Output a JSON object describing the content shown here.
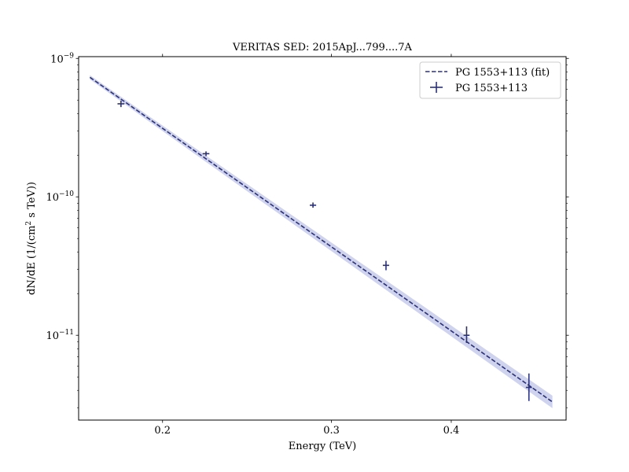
{
  "chart_data": {
    "type": "scatter",
    "title": "VERITAS SED: 2015ApJ...799....7A",
    "xlabel": "Energy (TeV)",
    "ylabel_main": "dN/dE (1/(cm",
    "ylabel_sup": "2",
    "ylabel_tail": " s TeV))",
    "x_scale": "log",
    "y_scale": "log",
    "xlim": [
      0.1635,
      0.527
    ],
    "ylim": [
      2.44e-12,
      1.03e-09
    ],
    "x_ticks": [
      {
        "value": 0.2,
        "label": "0.2"
      },
      {
        "value": 0.3,
        "label": "0.3"
      },
      {
        "value": 0.4,
        "label": "0.4"
      }
    ],
    "y_ticks": [
      {
        "value": 1e-09,
        "base": "10",
        "exp": "−9"
      },
      {
        "value": 1e-10,
        "base": "10",
        "exp": "−10"
      },
      {
        "value": 1e-11,
        "base": "10",
        "exp": "−11"
      }
    ],
    "colors": {
      "series": "#2b3175",
      "band": "#c7cbea"
    },
    "legend": {
      "placement": "top-right"
    },
    "series": [
      {
        "name": "PG 1553+113 (fit)",
        "kind": "line",
        "x_range": [
          0.168,
          0.51
        ],
        "y_at_range": [
          7.3e-10,
          3.3e-12
        ]
      },
      {
        "name": "PG 1553+113",
        "kind": "errorbar",
        "points": [
          {
            "x": 0.181,
            "y": 4.7e-10,
            "ylo": 4.45e-10,
            "yhi": 4.95e-10,
            "xerr": 0.0015
          },
          {
            "x": 0.222,
            "y": 2.05e-10,
            "ylo": 1.97e-10,
            "yhi": 2.13e-10,
            "xerr": 0.0018
          },
          {
            "x": 0.287,
            "y": 8.7e-11,
            "ylo": 8.35e-11,
            "yhi": 9.1e-11,
            "xerr": 0.0022
          },
          {
            "x": 0.342,
            "y": 3.2e-11,
            "ylo": 2.95e-11,
            "yhi": 3.45e-11,
            "xerr": 0.0026
          },
          {
            "x": 0.415,
            "y": 1e-11,
            "ylo": 8.8e-12,
            "yhi": 1.16e-11,
            "xerr": 0.003
          },
          {
            "x": 0.482,
            "y": 4.2e-12,
            "ylo": 3.35e-12,
            "yhi": 5.3e-12,
            "xerr": 0.0035
          }
        ]
      }
    ]
  }
}
